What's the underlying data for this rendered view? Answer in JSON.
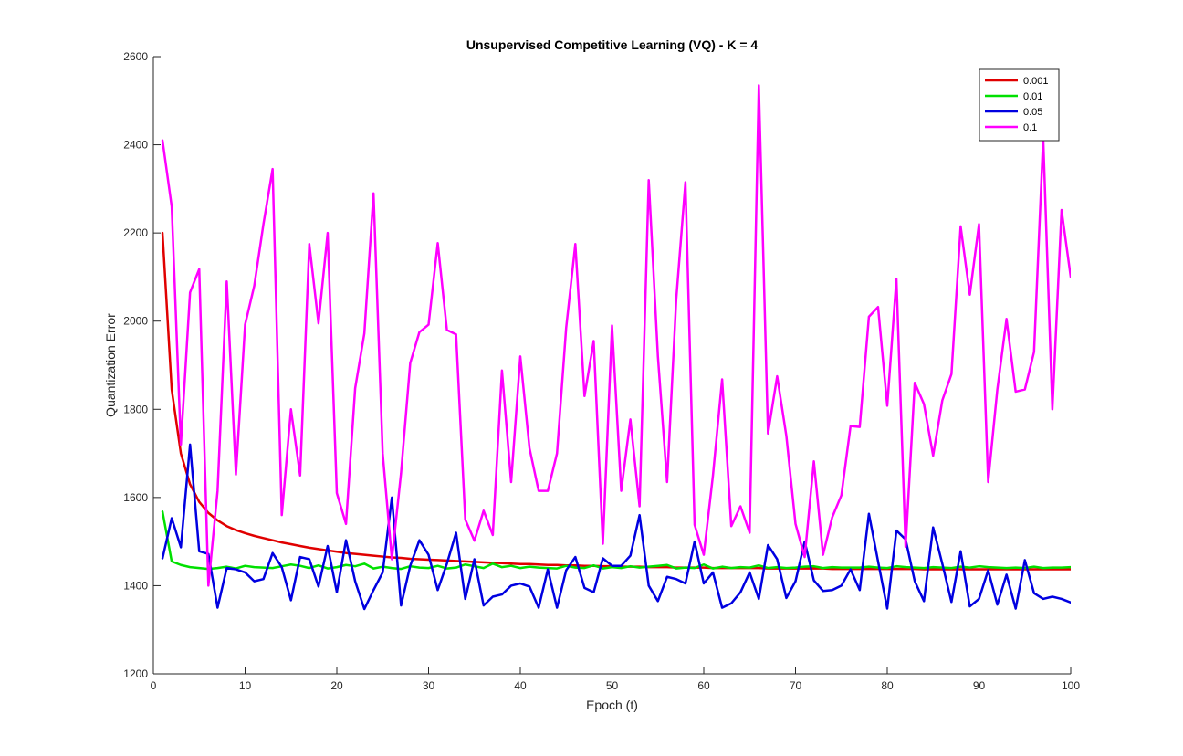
{
  "chart_data": {
    "type": "line",
    "title": "Unsupervised Competitive Learning (VQ) - K = 4",
    "xlabel": "Epoch (t)",
    "ylabel": "Quantization Error",
    "xlim": [
      0,
      100
    ],
    "ylim": [
      1200,
      2600
    ],
    "xticks": [
      0,
      10,
      20,
      30,
      40,
      50,
      60,
      70,
      80,
      90,
      100
    ],
    "yticks": [
      1200,
      1400,
      1600,
      1800,
      2000,
      2200,
      2400,
      2600
    ],
    "grid": false,
    "legend_position": "top-right",
    "x": [
      1,
      2,
      3,
      4,
      5,
      6,
      7,
      8,
      9,
      10,
      11,
      12,
      13,
      14,
      15,
      16,
      17,
      18,
      19,
      20,
      21,
      22,
      23,
      24,
      25,
      26,
      27,
      28,
      29,
      30,
      31,
      32,
      33,
      34,
      35,
      36,
      37,
      38,
      39,
      40,
      41,
      42,
      43,
      44,
      45,
      46,
      47,
      48,
      49,
      50,
      51,
      52,
      53,
      54,
      55,
      56,
      57,
      58,
      59,
      60,
      61,
      62,
      63,
      64,
      65,
      66,
      67,
      68,
      69,
      70,
      71,
      72,
      73,
      74,
      75,
      76,
      77,
      78,
      79,
      80,
      81,
      82,
      83,
      84,
      85,
      86,
      87,
      88,
      89,
      90,
      91,
      92,
      93,
      94,
      95,
      96,
      97,
      98,
      99,
      100
    ],
    "series": [
      {
        "name": "0.001",
        "color": "#e00000",
        "values": [
          2200,
          1845,
          1700,
          1630,
          1590,
          1565,
          1548,
          1535,
          1526,
          1519,
          1513,
          1508,
          1503,
          1498,
          1494,
          1490,
          1486,
          1483,
          1480,
          1477,
          1474,
          1472,
          1470,
          1468,
          1466,
          1464,
          1463,
          1461,
          1460,
          1459,
          1458,
          1457,
          1456,
          1455,
          1454,
          1453,
          1452,
          1451,
          1450,
          1449,
          1449,
          1448,
          1447,
          1447,
          1446,
          1446,
          1445,
          1445,
          1444,
          1444,
          1443,
          1443,
          1443,
          1442,
          1442,
          1442,
          1441,
          1441,
          1441,
          1441,
          1440,
          1440,
          1440,
          1440,
          1440,
          1440,
          1439,
          1439,
          1439,
          1439,
          1439,
          1439,
          1439,
          1438,
          1438,
          1438,
          1438,
          1438,
          1438,
          1438,
          1438,
          1438,
          1438,
          1437,
          1437,
          1437,
          1437,
          1437,
          1437,
          1437,
          1437,
          1437,
          1437,
          1437,
          1437,
          1437,
          1437,
          1437,
          1437,
          1437
        ]
      },
      {
        "name": "0.01",
        "color": "#00e000",
        "values": [
          1568,
          1455,
          1447,
          1442,
          1440,
          1438,
          1440,
          1443,
          1439,
          1445,
          1442,
          1441,
          1440,
          1444,
          1448,
          1445,
          1440,
          1446,
          1439,
          1442,
          1447,
          1444,
          1450,
          1439,
          1443,
          1440,
          1438,
          1444,
          1441,
          1440,
          1445,
          1439,
          1441,
          1448,
          1444,
          1440,
          1450,
          1442,
          1445,
          1440,
          1443,
          1441,
          1440,
          1439,
          1445,
          1441,
          1440,
          1446,
          1439,
          1442,
          1440,
          1444,
          1441,
          1443,
          1445,
          1447,
          1439,
          1441,
          1440,
          1448,
          1439,
          1443,
          1440,
          1442,
          1441,
          1446,
          1440,
          1442,
          1440,
          1441,
          1443,
          1444,
          1440,
          1442,
          1441,
          1441,
          1441,
          1443,
          1441,
          1440,
          1444,
          1442,
          1441,
          1440,
          1442,
          1441,
          1440,
          1443,
          1441,
          1444,
          1442,
          1441,
          1440,
          1441,
          1440,
          1443,
          1440,
          1441,
          1441,
          1442
        ]
      },
      {
        "name": "0.05",
        "color": "#0000e0",
        "values": [
          1462,
          1553,
          1487,
          1720,
          1478,
          1472,
          1350,
          1440,
          1437,
          1430,
          1410,
          1415,
          1474,
          1442,
          1367,
          1465,
          1460,
          1398,
          1490,
          1385,
          1503,
          1410,
          1347,
          1390,
          1430,
          1600,
          1355,
          1445,
          1503,
          1470,
          1390,
          1450,
          1520,
          1370,
          1460,
          1355,
          1375,
          1380,
          1400,
          1405,
          1398,
          1350,
          1437,
          1350,
          1435,
          1465,
          1395,
          1385,
          1462,
          1445,
          1445,
          1468,
          1560,
          1400,
          1365,
          1420,
          1415,
          1405,
          1500,
          1405,
          1430,
          1350,
          1360,
          1385,
          1430,
          1370,
          1492,
          1460,
          1372,
          1410,
          1500,
          1412,
          1388,
          1390,
          1400,
          1437,
          1390,
          1563,
          1455,
          1348,
          1525,
          1505,
          1410,
          1365,
          1532,
          1450,
          1363,
          1478,
          1353,
          1370,
          1435,
          1357,
          1425,
          1348,
          1458,
          1383,
          1370,
          1375,
          1370,
          1362
        ]
      },
      {
        "name": "0.1",
        "color": "#ff00ff",
        "values": [
          2410,
          2260,
          1720,
          2065,
          2118,
          1400,
          1615,
          2090,
          1652,
          1992,
          2080,
          2220,
          2345,
          1560,
          1800,
          1650,
          2175,
          1995,
          2200,
          1610,
          1540,
          1848,
          1972,
          2290,
          1700,
          1460,
          1655,
          1905,
          1975,
          1992,
          2177,
          1980,
          1970,
          1550,
          1502,
          1570,
          1515,
          1888,
          1635,
          1920,
          1712,
          1615,
          1615,
          1700,
          1985,
          2175,
          1830,
          1955,
          1495,
          1990,
          1615,
          1777,
          1580,
          2320,
          1920,
          1635,
          2050,
          2315,
          1538,
          1470,
          1650,
          1868,
          1535,
          1580,
          1520,
          2535,
          1745,
          1875,
          1740,
          1540,
          1465,
          1682,
          1470,
          1555,
          1605,
          1762,
          1760,
          2010,
          2032,
          1808,
          2096,
          1488,
          1860,
          1812,
          1695,
          1820,
          1880,
          2215,
          2060,
          2220,
          1635,
          1845,
          2005,
          1840,
          1845,
          1930,
          2415,
          1800,
          2252,
          2100
        ]
      }
    ]
  }
}
